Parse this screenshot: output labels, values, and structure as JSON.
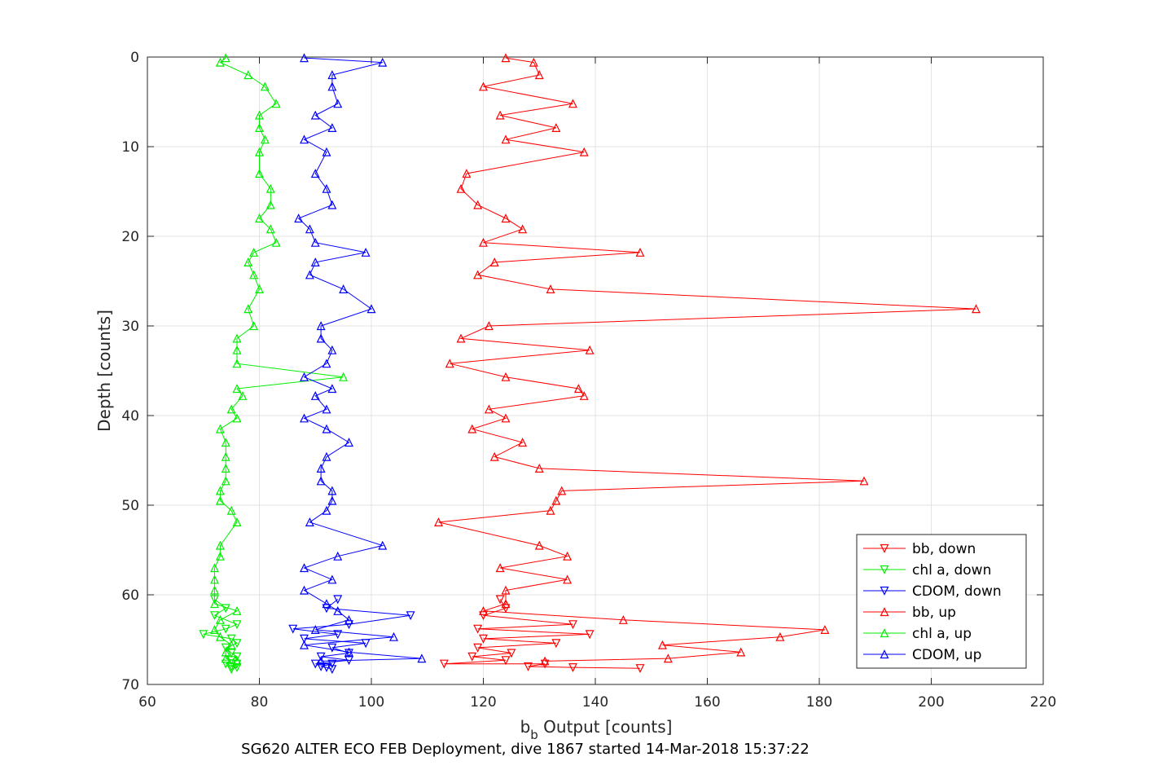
{
  "chart_data": {
    "type": "line",
    "title": "",
    "caption": "SG620 ALTER ECO FEB Deployment, dive 1867 started 14-Mar-2018 15:37:22",
    "xlabel_main": "b",
    "xlabel_sub": "b",
    "xlabel_rest": " Output [counts]",
    "ylabel": "Depth [counts]",
    "xlim": [
      60,
      220
    ],
    "ylim": [
      0,
      70
    ],
    "y_reversed": true,
    "grid": true,
    "legend_position": "bottom-right",
    "xticks": [
      60,
      80,
      100,
      120,
      140,
      160,
      180,
      200,
      220
    ],
    "yticks": [
      0,
      10,
      20,
      30,
      40,
      50,
      60,
      70
    ],
    "series": [
      {
        "name": "bb, down",
        "color": "#ff0000",
        "marker": "triangle-down",
        "points": [
          [
            123,
            60.5
          ],
          [
            124,
            61.5
          ],
          [
            120,
            62.3
          ],
          [
            136,
            63.3
          ],
          [
            119,
            63.8
          ],
          [
            139,
            64.4
          ],
          [
            120,
            64.9
          ],
          [
            133,
            65.4
          ],
          [
            119,
            65.9
          ],
          [
            125,
            66.5
          ],
          [
            118,
            66.9
          ],
          [
            124,
            67.3
          ],
          [
            113,
            67.7
          ],
          [
            131,
            67.7
          ],
          [
            128,
            68.0
          ],
          [
            136,
            68.1
          ],
          [
            148,
            68.2
          ]
        ]
      },
      {
        "name": "chl a, down",
        "color": "#00ee00",
        "marker": "triangle-down",
        "points": [
          [
            72,
            60.5
          ],
          [
            74,
            61.5
          ],
          [
            72,
            62.3
          ],
          [
            76,
            63.3
          ],
          [
            74,
            63.8
          ],
          [
            70,
            64.4
          ],
          [
            75,
            64.9
          ],
          [
            76,
            65.4
          ],
          [
            74,
            65.9
          ],
          [
            75,
            66.5
          ],
          [
            76,
            66.9
          ],
          [
            75,
            67.3
          ],
          [
            74,
            67.7
          ],
          [
            76,
            67.7
          ],
          [
            75,
            68.0
          ],
          [
            76,
            68.1
          ],
          [
            75,
            68.3
          ]
        ]
      },
      {
        "name": "CDOM, down",
        "color": "#0000ff",
        "marker": "triangle-down",
        "points": [
          [
            94,
            60.5
          ],
          [
            92,
            61.5
          ],
          [
            107,
            62.3
          ],
          [
            96,
            63.3
          ],
          [
            86,
            63.8
          ],
          [
            94,
            64.4
          ],
          [
            88,
            64.9
          ],
          [
            99,
            65.4
          ],
          [
            93,
            65.9
          ],
          [
            96,
            66.5
          ],
          [
            91,
            66.9
          ],
          [
            96,
            67.3
          ],
          [
            90,
            67.7
          ],
          [
            93,
            67.7
          ],
          [
            91,
            68.0
          ],
          [
            92,
            68.1
          ],
          [
            93,
            68.3
          ]
        ]
      },
      {
        "name": "bb, up",
        "color": "#ff0000",
        "marker": "triangle-up",
        "points": [
          [
            124,
            0.1
          ],
          [
            129,
            0.6
          ],
          [
            130,
            2.0
          ],
          [
            120,
            3.3
          ],
          [
            136,
            5.2
          ],
          [
            123,
            6.5
          ],
          [
            133,
            7.9
          ],
          [
            124,
            9.2
          ],
          [
            138,
            10.6
          ],
          [
            117,
            13.0
          ],
          [
            116,
            14.7
          ],
          [
            119,
            16.5
          ],
          [
            124,
            18.0
          ],
          [
            127,
            19.2
          ],
          [
            120,
            20.7
          ],
          [
            148,
            21.8
          ],
          [
            122,
            22.9
          ],
          [
            119,
            24.3
          ],
          [
            132,
            25.9
          ],
          [
            208,
            28.1
          ],
          [
            121,
            30.0
          ],
          [
            116,
            31.4
          ],
          [
            139,
            32.7
          ],
          [
            114,
            34.2
          ],
          [
            124,
            35.7
          ],
          [
            137,
            37.0
          ],
          [
            138,
            37.8
          ],
          [
            121,
            39.3
          ],
          [
            124,
            40.3
          ],
          [
            118,
            41.5
          ],
          [
            127,
            43.0
          ],
          [
            122,
            44.6
          ],
          [
            130,
            45.9
          ],
          [
            188,
            47.3
          ],
          [
            134,
            48.4
          ],
          [
            133,
            49.5
          ],
          [
            132,
            50.6
          ],
          [
            112,
            51.9
          ],
          [
            130,
            54.5
          ],
          [
            135,
            55.7
          ],
          [
            123,
            57.0
          ],
          [
            135,
            58.3
          ],
          [
            124,
            59.5
          ],
          [
            124,
            61.0
          ],
          [
            120,
            61.8
          ],
          [
            145,
            62.8
          ],
          [
            181,
            63.9
          ],
          [
            173,
            64.7
          ],
          [
            152,
            65.6
          ],
          [
            166,
            66.4
          ],
          [
            153,
            67.1
          ],
          [
            131,
            67.4
          ]
        ]
      },
      {
        "name": "chl a, up",
        "color": "#00ee00",
        "marker": "triangle-up",
        "points": [
          [
            74,
            0.1
          ],
          [
            73,
            0.6
          ],
          [
            78,
            2.0
          ],
          [
            81,
            3.3
          ],
          [
            83,
            5.2
          ],
          [
            80,
            6.5
          ],
          [
            80,
            7.9
          ],
          [
            81,
            9.2
          ],
          [
            80,
            10.6
          ],
          [
            80,
            13.0
          ],
          [
            82,
            14.7
          ],
          [
            82,
            16.5
          ],
          [
            80,
            18.0
          ],
          [
            82,
            19.2
          ],
          [
            83,
            20.7
          ],
          [
            79,
            21.8
          ],
          [
            78,
            22.9
          ],
          [
            79,
            24.3
          ],
          [
            80,
            25.9
          ],
          [
            78,
            28.1
          ],
          [
            79,
            30.0
          ],
          [
            76,
            31.4
          ],
          [
            76,
            32.7
          ],
          [
            76,
            34.2
          ],
          [
            95,
            35.7
          ],
          [
            76,
            37.0
          ],
          [
            77,
            37.8
          ],
          [
            75,
            39.3
          ],
          [
            76,
            40.3
          ],
          [
            73,
            41.5
          ],
          [
            74,
            43.0
          ],
          [
            74,
            44.6
          ],
          [
            74,
            45.9
          ],
          [
            74,
            47.3
          ],
          [
            73,
            48.4
          ],
          [
            73,
            49.5
          ],
          [
            75,
            50.6
          ],
          [
            76,
            51.9
          ],
          [
            73,
            54.5
          ],
          [
            73,
            55.7
          ],
          [
            72,
            57.0
          ],
          [
            72,
            58.3
          ],
          [
            72,
            59.5
          ],
          [
            72,
            61.0
          ],
          [
            76,
            61.8
          ],
          [
            73,
            62.8
          ],
          [
            72,
            63.9
          ],
          [
            73,
            64.7
          ],
          [
            75,
            65.6
          ],
          [
            74,
            66.4
          ],
          [
            74,
            67.1
          ],
          [
            76,
            67.4
          ]
        ]
      },
      {
        "name": "CDOM, up",
        "color": "#0000ff",
        "marker": "triangle-up",
        "points": [
          [
            88,
            0.1
          ],
          [
            102,
            0.6
          ],
          [
            93,
            2.0
          ],
          [
            93,
            3.3
          ],
          [
            94,
            5.2
          ],
          [
            90,
            6.5
          ],
          [
            93,
            7.9
          ],
          [
            88,
            9.2
          ],
          [
            92,
            10.6
          ],
          [
            90,
            13.0
          ],
          [
            92,
            14.7
          ],
          [
            93,
            16.5
          ],
          [
            87,
            18.0
          ],
          [
            89,
            19.2
          ],
          [
            90,
            20.7
          ],
          [
            99,
            21.8
          ],
          [
            90,
            22.9
          ],
          [
            89,
            24.3
          ],
          [
            95,
            25.9
          ],
          [
            100,
            28.1
          ],
          [
            91,
            30.0
          ],
          [
            91,
            31.4
          ],
          [
            93,
            32.7
          ],
          [
            92,
            34.2
          ],
          [
            88,
            35.7
          ],
          [
            93,
            37.0
          ],
          [
            90,
            37.8
          ],
          [
            92,
            39.3
          ],
          [
            88,
            40.3
          ],
          [
            92,
            41.5
          ],
          [
            96,
            43.0
          ],
          [
            92,
            44.6
          ],
          [
            91,
            45.9
          ],
          [
            91,
            47.3
          ],
          [
            93,
            48.4
          ],
          [
            93,
            49.5
          ],
          [
            92,
            50.6
          ],
          [
            89,
            51.9
          ],
          [
            102,
            54.5
          ],
          [
            94,
            55.7
          ],
          [
            88,
            57.0
          ],
          [
            93,
            58.3
          ],
          [
            88,
            59.5
          ],
          [
            92,
            61.0
          ],
          [
            94,
            61.8
          ],
          [
            96,
            62.8
          ],
          [
            90,
            63.9
          ],
          [
            104,
            64.7
          ],
          [
            88,
            65.6
          ],
          [
            96,
            66.4
          ],
          [
            109,
            67.1
          ],
          [
            91,
            67.4
          ]
        ]
      }
    ]
  }
}
